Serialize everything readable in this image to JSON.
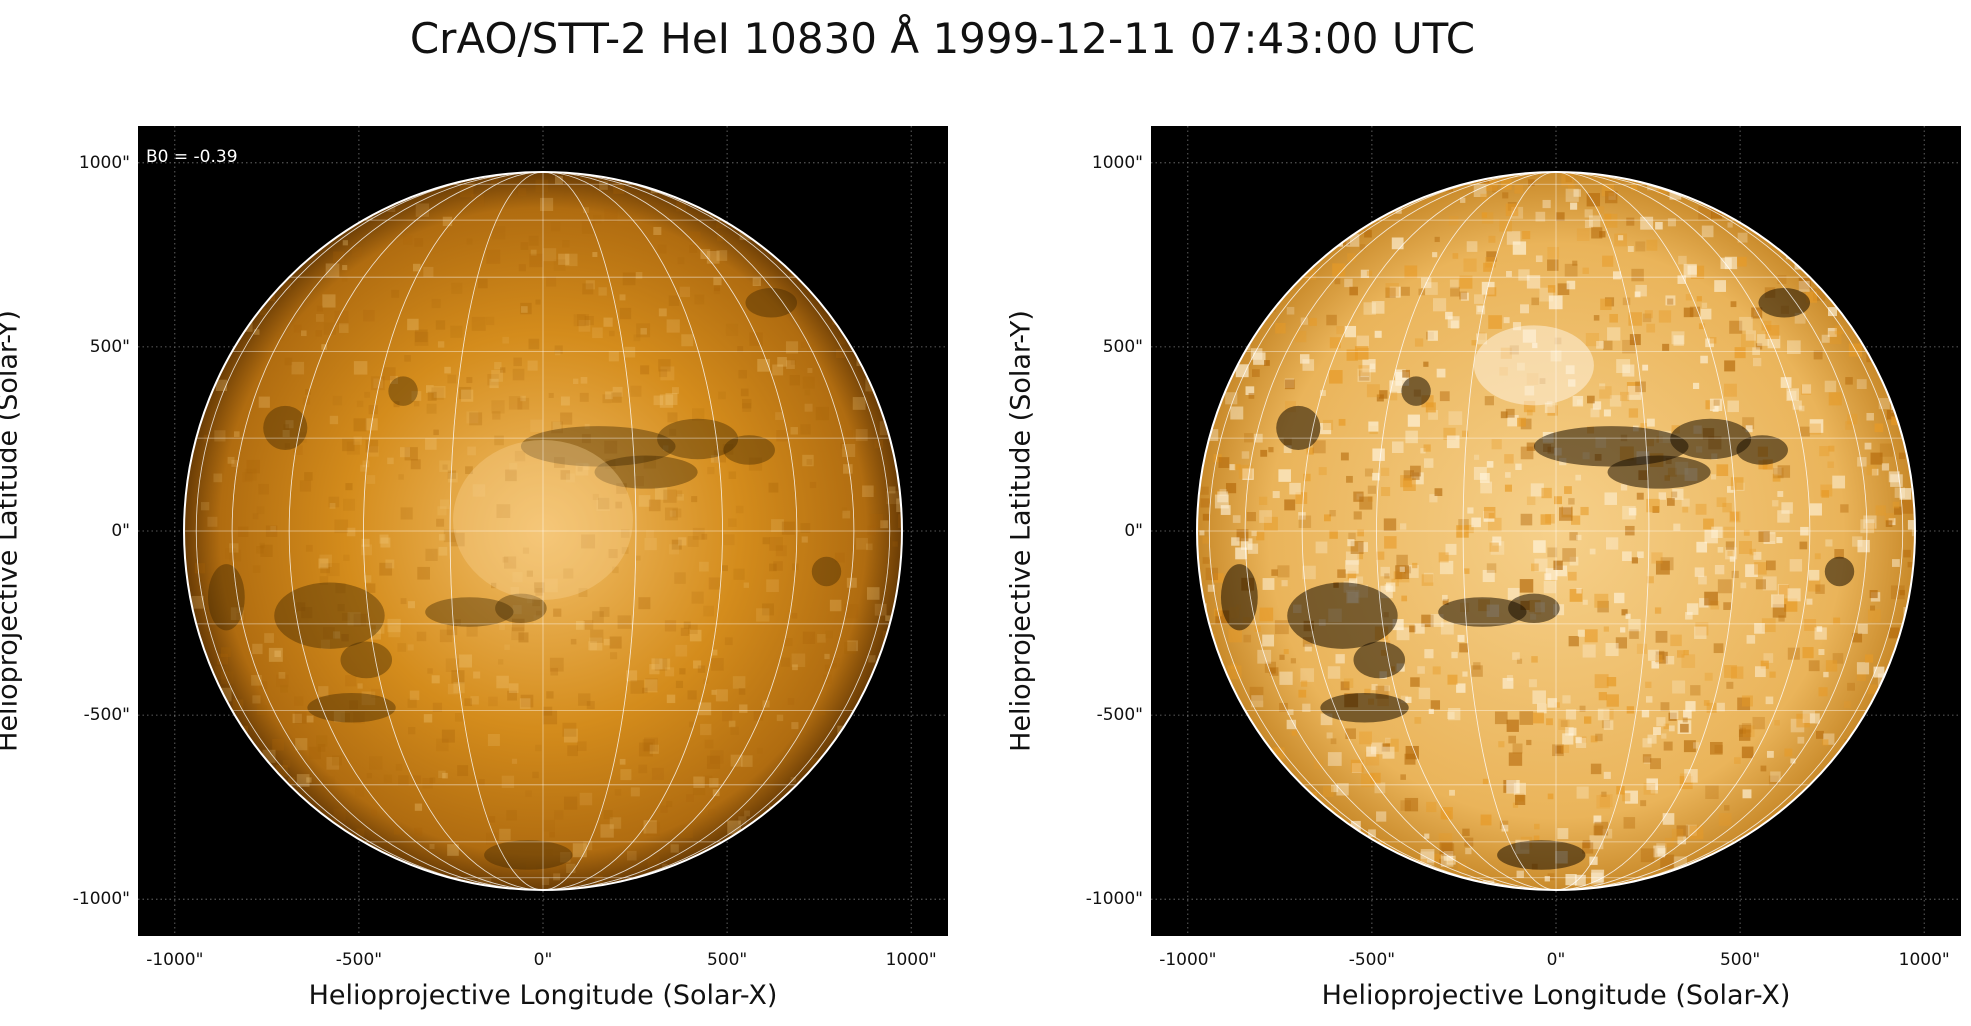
{
  "title": "CrAO/STT-2 HeI 10830 Å 1999-12-11 07:43:00 UTC",
  "left_panel": {
    "annotation": "B0 = -0.39",
    "xlabel": "Helioprojective Longitude (Solar-X)",
    "ylabel": "Helioprojective Latitude (Solar-Y)",
    "xticks": [
      "-1000\"",
      "-500\"",
      "0\"",
      "500\"",
      "1000\""
    ],
    "yticks": [
      "1000\"",
      "500\"",
      "0\"",
      "-500\"",
      "-1000\""
    ],
    "tick_values": [
      -1000,
      -500,
      0,
      500,
      1000
    ],
    "axis_range_arcsec": [
      -1100,
      1100
    ],
    "solar_radius_arcsec": 975,
    "colormap": "orange/copper (solar He I)",
    "contrast": "normal"
  },
  "right_panel": {
    "xlabel": "Helioprojective Longitude (Solar-X)",
    "ylabel": "Helioprojective Latitude (Solar-Y)",
    "xticks": [
      "-1000\"",
      "-500\"",
      "0\"",
      "500\"",
      "1000\""
    ],
    "yticks": [
      "1000\"",
      "500\"",
      "0\"",
      "-500\"",
      "-1000\""
    ],
    "tick_values": [
      -1000,
      -500,
      0,
      500,
      1000
    ],
    "axis_range_arcsec": [
      -1100,
      1100
    ],
    "solar_radius_arcsec": 975,
    "colormap": "orange/copper (solar He I)",
    "contrast": "enhanced"
  },
  "colors": {
    "background": "#000000",
    "disk_light": "#f3c06a",
    "disk_mid": "#d48c1c",
    "disk_dark": "#3a2200",
    "grid": "#ffffff"
  }
}
